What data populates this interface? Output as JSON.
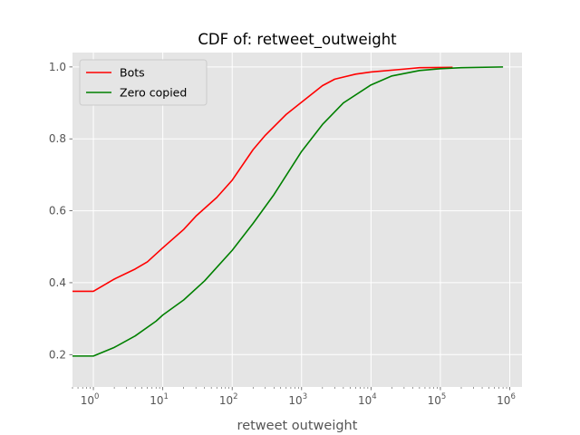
{
  "chart_data": {
    "type": "line",
    "title": "CDF of: retweet_outweight",
    "xlabel": "retweet outweight",
    "ylabel": "",
    "xscale": "log",
    "xlim": [
      0.5,
      1500000
    ],
    "ylim": [
      0.11,
      1.04
    ],
    "x_ticks": [
      1,
      10,
      100,
      1000,
      10000,
      100000,
      1000000
    ],
    "x_tick_labels": [
      {
        "base": "10",
        "exp": "0"
      },
      {
        "base": "10",
        "exp": "1"
      },
      {
        "base": "10",
        "exp": "2"
      },
      {
        "base": "10",
        "exp": "3"
      },
      {
        "base": "10",
        "exp": "4"
      },
      {
        "base": "10",
        "exp": "5"
      },
      {
        "base": "10",
        "exp": "6"
      }
    ],
    "y_ticks": [
      0.2,
      0.4,
      0.6,
      0.8,
      1.0
    ],
    "y_tick_labels": [
      "0.2",
      "0.4",
      "0.6",
      "0.8",
      "1.0"
    ],
    "grid": true,
    "legend_position": "top-left",
    "series": [
      {
        "name": "Bots",
        "color": "#ff0000",
        "x": [
          0.5,
          1,
          2,
          4,
          6,
          10,
          20,
          30,
          60,
          100,
          200,
          300,
          600,
          1000,
          2000,
          3000,
          6000,
          10000,
          30000,
          50000,
          150000
        ],
        "y": [
          0.376,
          0.376,
          0.41,
          0.438,
          0.458,
          0.497,
          0.548,
          0.585,
          0.637,
          0.685,
          0.77,
          0.81,
          0.868,
          0.902,
          0.948,
          0.966,
          0.98,
          0.986,
          0.994,
          0.998,
          0.999
        ]
      },
      {
        "name": "Zero copied",
        "color": "#008000",
        "x": [
          0.5,
          1,
          2,
          4,
          8,
          10,
          20,
          40,
          100,
          200,
          400,
          1000,
          2000,
          4000,
          10000,
          20000,
          50000,
          100000,
          200000,
          800000
        ],
        "y": [
          0.196,
          0.196,
          0.22,
          0.252,
          0.293,
          0.31,
          0.352,
          0.405,
          0.49,
          0.565,
          0.645,
          0.765,
          0.84,
          0.9,
          0.95,
          0.975,
          0.99,
          0.995,
          0.998,
          1.0
        ]
      }
    ]
  }
}
